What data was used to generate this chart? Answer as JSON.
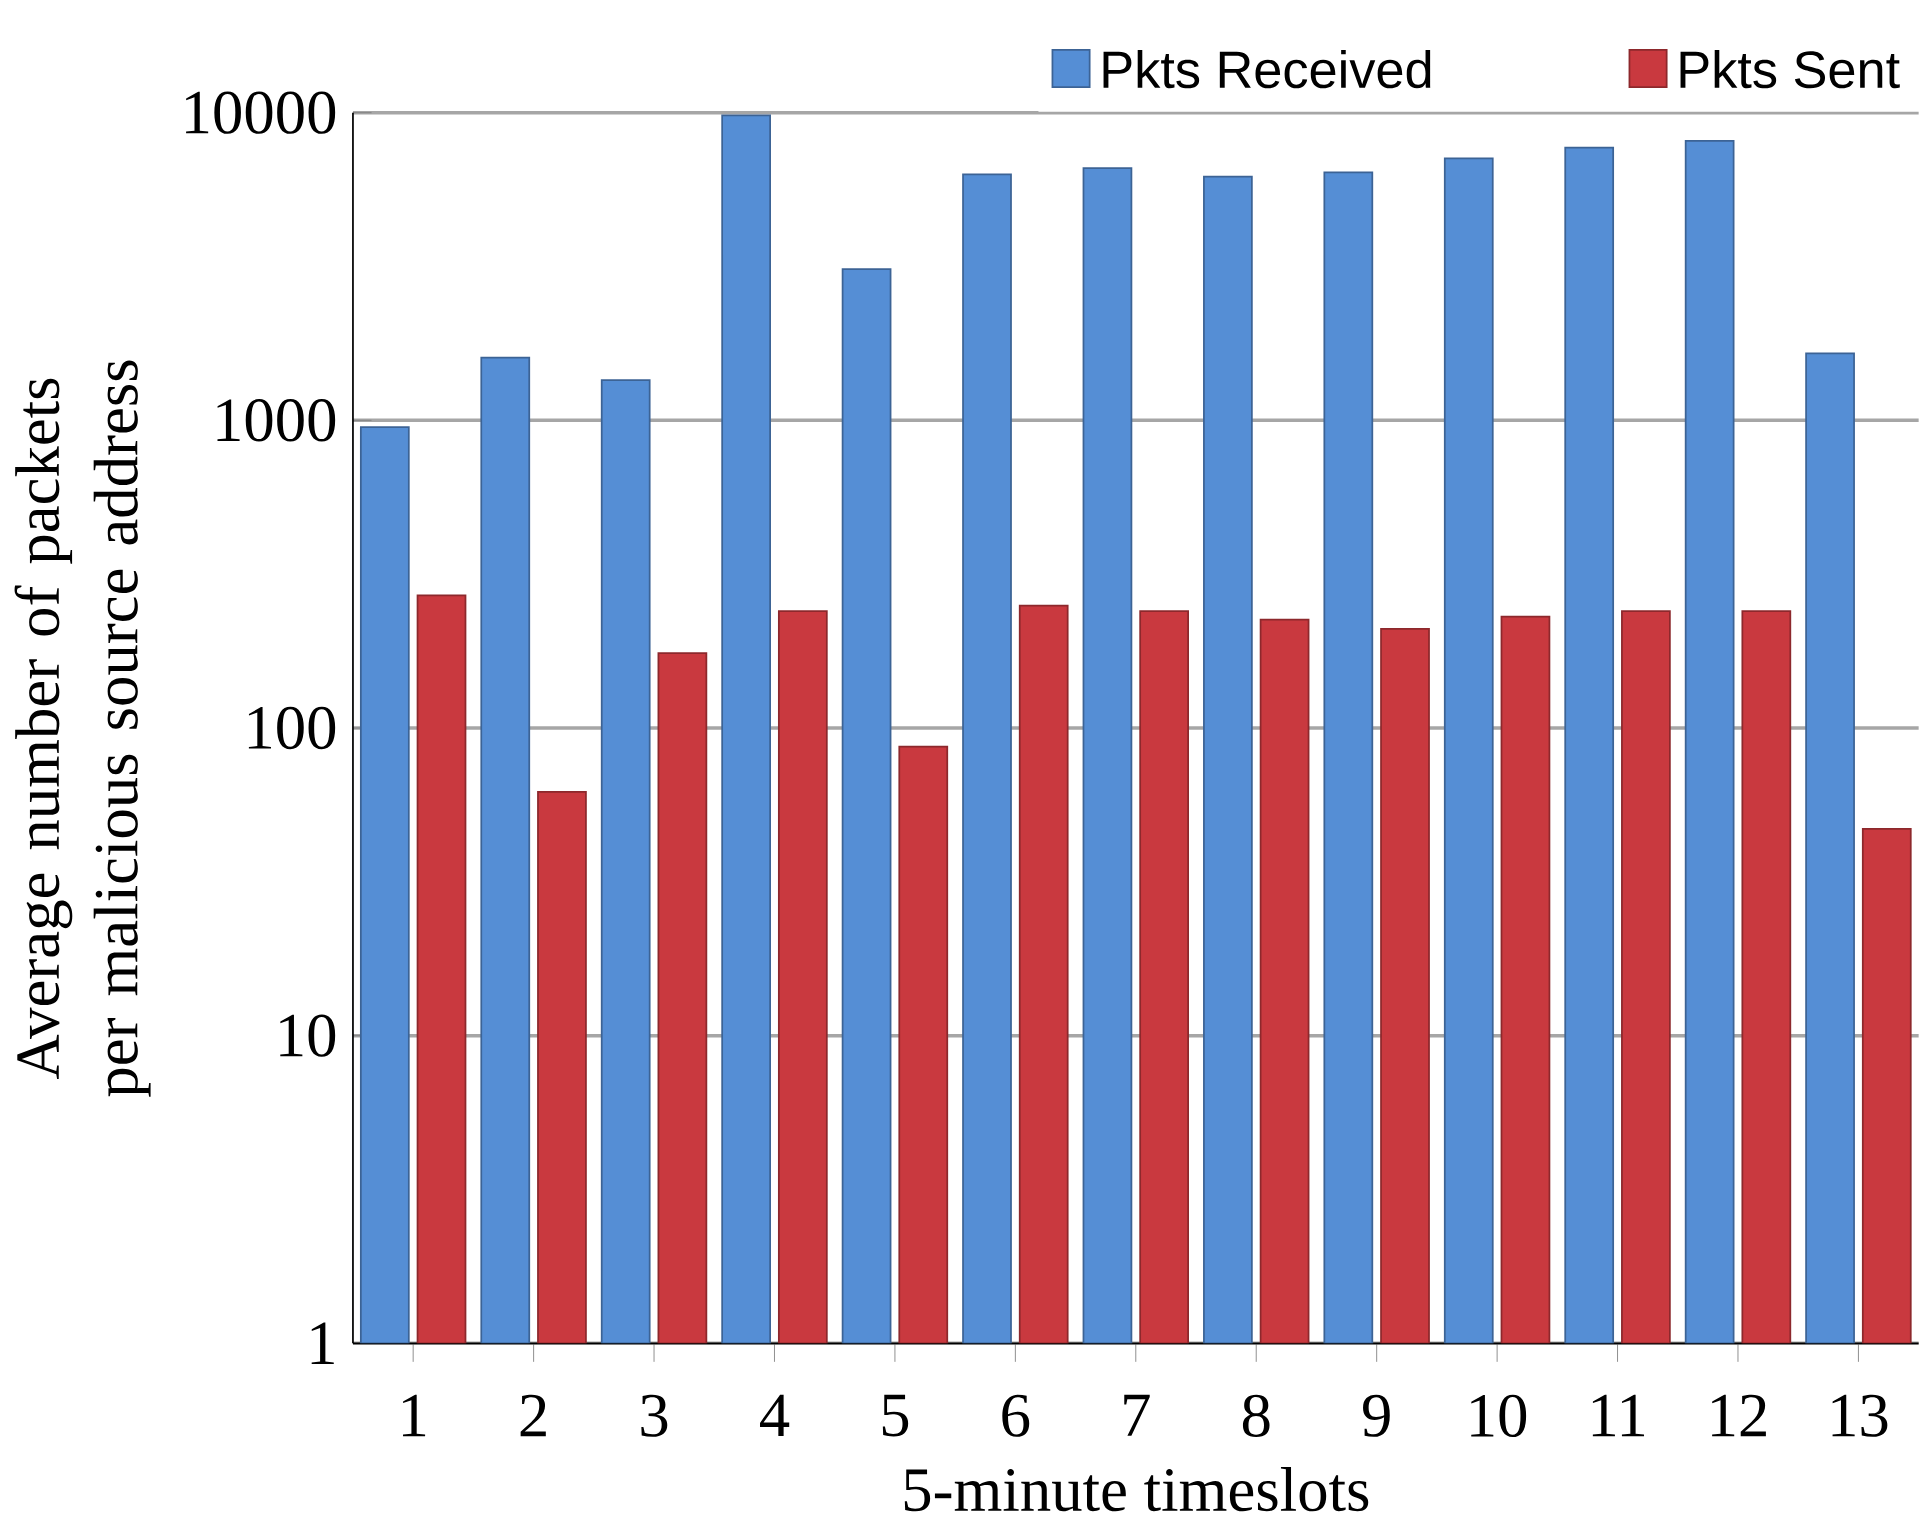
{
  "chart_data": {
    "type": "bar",
    "xlabel": "5-minute timeslots",
    "ylabel": "Average number of packets per malicious source address",
    "categories": [
      "1",
      "2",
      "3",
      "4",
      "5",
      "6",
      "7",
      "8",
      "9",
      "10",
      "11",
      "12",
      "13"
    ],
    "series": [
      {
        "name": "Pkts Received",
        "color": "#558ed5",
        "values": [
          950,
          1600,
          1350,
          9800,
          3100,
          6300,
          6600,
          6200,
          6400,
          7100,
          7700,
          8100,
          1650
        ]
      },
      {
        "name": "Pkts Sent",
        "color": "#c9393f",
        "values": [
          270,
          62,
          175,
          240,
          87,
          250,
          240,
          225,
          210,
          230,
          240,
          240,
          47
        ]
      }
    ],
    "log": "y",
    "ylim": [
      1,
      10000
    ],
    "yticks": [
      1,
      10,
      100,
      1000,
      10000
    ],
    "grid": "y",
    "legend": "top"
  }
}
